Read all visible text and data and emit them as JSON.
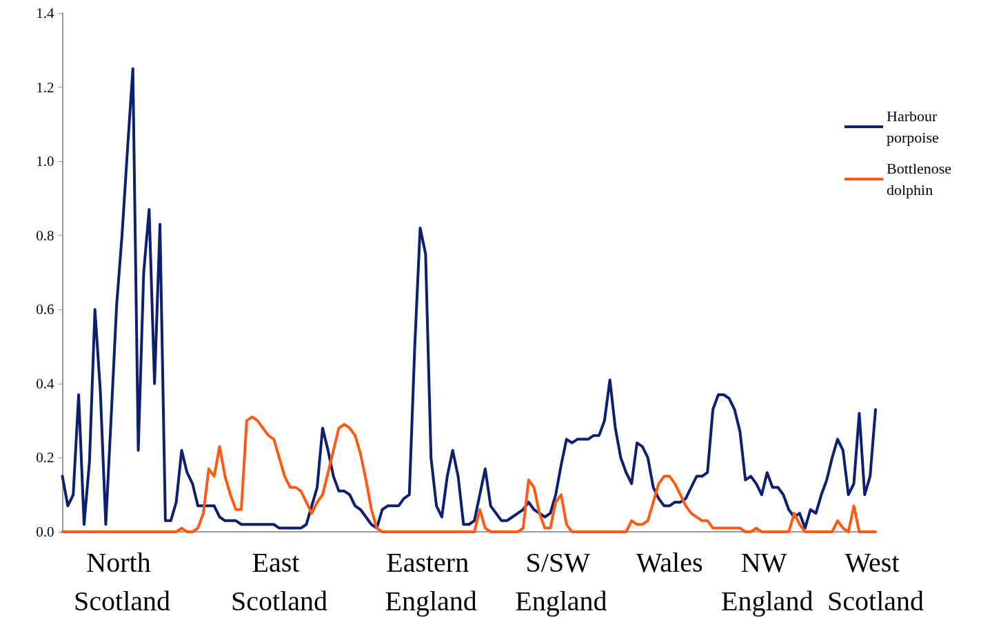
{
  "chart_data": {
    "type": "line",
    "categories": [
      null,
      null,
      null,
      null,
      null,
      null,
      null,
      null,
      null,
      null,
      null,
      "North Scotland",
      null,
      null,
      null,
      null,
      null,
      null,
      null,
      null,
      null,
      null,
      null,
      null,
      null,
      null,
      null,
      null,
      null,
      null,
      null,
      null,
      null,
      null,
      null,
      null,
      null,
      null,
      null,
      null,
      "East Scotland",
      null,
      null,
      null,
      null,
      null,
      null,
      null,
      null,
      null,
      null,
      null,
      null,
      null,
      null,
      null,
      null,
      null,
      null,
      null,
      null,
      null,
      null,
      null,
      null,
      null,
      null,
      null,
      "Eastern England",
      null,
      null,
      null,
      null,
      null,
      null,
      null,
      null,
      null,
      null,
      null,
      null,
      null,
      null,
      null,
      null,
      null,
      null,
      null,
      null,
      null,
      null,
      null,
      "S/SW England",
      null,
      null,
      null,
      null,
      null,
      null,
      null,
      null,
      null,
      null,
      null,
      null,
      null,
      null,
      null,
      null,
      null,
      null,
      null,
      "Wales",
      null,
      null,
      null,
      null,
      null,
      null,
      null,
      null,
      null,
      null,
      null,
      null,
      null,
      null,
      null,
      null,
      null,
      "NW England",
      null,
      null,
      null,
      null,
      null,
      null,
      null,
      null,
      null,
      null,
      null,
      null,
      null,
      null,
      null,
      null,
      null,
      null,
      null,
      "West Scotland"
    ],
    "series": [
      {
        "name": "Harbour porpoise",
        "color": "#0d1f6e",
        "values": [
          0.15,
          0.07,
          0.1,
          0.37,
          0.02,
          0.19,
          0.6,
          0.38,
          0.02,
          0.31,
          0.61,
          0.8,
          1.03,
          1.25,
          0.22,
          0.7,
          0.87,
          0.4,
          0.83,
          0.03,
          0.03,
          0.08,
          0.22,
          0.16,
          0.13,
          0.07,
          0.07,
          0.07,
          0.07,
          0.04,
          0.03,
          0.03,
          0.03,
          0.02,
          0.02,
          0.02,
          0.02,
          0.02,
          0.02,
          0.02,
          0.01,
          0.01,
          0.01,
          0.01,
          0.01,
          0.02,
          0.07,
          0.12,
          0.28,
          0.22,
          0.15,
          0.11,
          0.11,
          0.1,
          0.07,
          0.06,
          0.04,
          0.02,
          0.01,
          0.06,
          0.07,
          0.07,
          0.07,
          0.09,
          0.1,
          0.5,
          0.82,
          0.75,
          0.2,
          0.07,
          0.04,
          0.15,
          0.22,
          0.15,
          0.02,
          0.02,
          0.03,
          0.1,
          0.17,
          0.07,
          0.05,
          0.03,
          0.03,
          0.04,
          0.05,
          0.06,
          0.08,
          0.06,
          0.05,
          0.04,
          0.05,
          0.1,
          0.18,
          0.25,
          0.24,
          0.25,
          0.25,
          0.25,
          0.26,
          0.26,
          0.3,
          0.41,
          0.28,
          0.2,
          0.16,
          0.13,
          0.24,
          0.23,
          0.2,
          0.12,
          0.09,
          0.07,
          0.07,
          0.08,
          0.08,
          0.09,
          0.12,
          0.15,
          0.15,
          0.16,
          0.33,
          0.37,
          0.37,
          0.36,
          0.33,
          0.27,
          0.14,
          0.15,
          0.13,
          0.1,
          0.16,
          0.12,
          0.12,
          0.1,
          0.06,
          0.04,
          0.05,
          0.01,
          0.06,
          0.05,
          0.1,
          0.14,
          0.2,
          0.25,
          0.22,
          0.1,
          0.13,
          0.32,
          0.1,
          0.15,
          0.33
        ]
      },
      {
        "name": "Bottlenose dolphin",
        "color": "#ff5a14",
        "values": [
          0,
          0,
          0,
          0,
          0,
          0,
          0,
          0,
          0,
          0,
          0,
          0,
          0,
          0,
          0,
          0,
          0,
          0,
          0,
          0,
          0,
          0,
          0.01,
          0,
          0,
          0.01,
          0.05,
          0.17,
          0.15,
          0.23,
          0.15,
          0.1,
          0.06,
          0.06,
          0.3,
          0.31,
          0.3,
          0.28,
          0.26,
          0.25,
          0.2,
          0.15,
          0.12,
          0.12,
          0.11,
          0.08,
          0.05,
          0.08,
          0.1,
          0.16,
          0.22,
          0.28,
          0.29,
          0.28,
          0.26,
          0.21,
          0.14,
          0.06,
          0.01,
          0,
          0,
          0,
          0,
          0,
          0,
          0,
          0,
          0,
          0,
          0,
          0,
          0,
          0,
          0,
          0,
          0,
          0,
          0.06,
          0.01,
          0,
          0,
          0,
          0,
          0,
          0,
          0.01,
          0.14,
          0.12,
          0.05,
          0.01,
          0.01,
          0.08,
          0.1,
          0.02,
          0,
          0,
          0,
          0,
          0,
          0,
          0,
          0,
          0,
          0,
          0,
          0.03,
          0.02,
          0.02,
          0.03,
          0.08,
          0.13,
          0.15,
          0.15,
          0.13,
          0.1,
          0.07,
          0.05,
          0.04,
          0.03,
          0.03,
          0.01,
          0.01,
          0.01,
          0.01,
          0.01,
          0.01,
          0,
          0,
          0.01,
          0,
          0,
          0,
          0,
          0,
          0,
          0.05,
          0.02,
          0,
          0,
          0,
          0,
          0,
          0,
          0.03,
          0.01,
          0,
          0.07,
          0,
          0,
          0,
          0
        ]
      }
    ],
    "ylim": [
      0,
      1.4
    ],
    "yticks": [
      {
        "value": 0,
        "label": "0.0"
      },
      {
        "value": 0.2,
        "label": "0.2"
      },
      {
        "value": 0.4,
        "label": "0.4"
      },
      {
        "value": 0.6,
        "label": "0.6"
      },
      {
        "value": 0.8,
        "label": "0.8"
      },
      {
        "value": 1.0,
        "label": "1.0"
      },
      {
        "value": 1.2,
        "label": "1.2"
      },
      {
        "value": 1.4,
        "label": "1.4"
      }
    ],
    "grid": false,
    "legend": "top right",
    "marker": "none",
    "line_style": "solid"
  }
}
